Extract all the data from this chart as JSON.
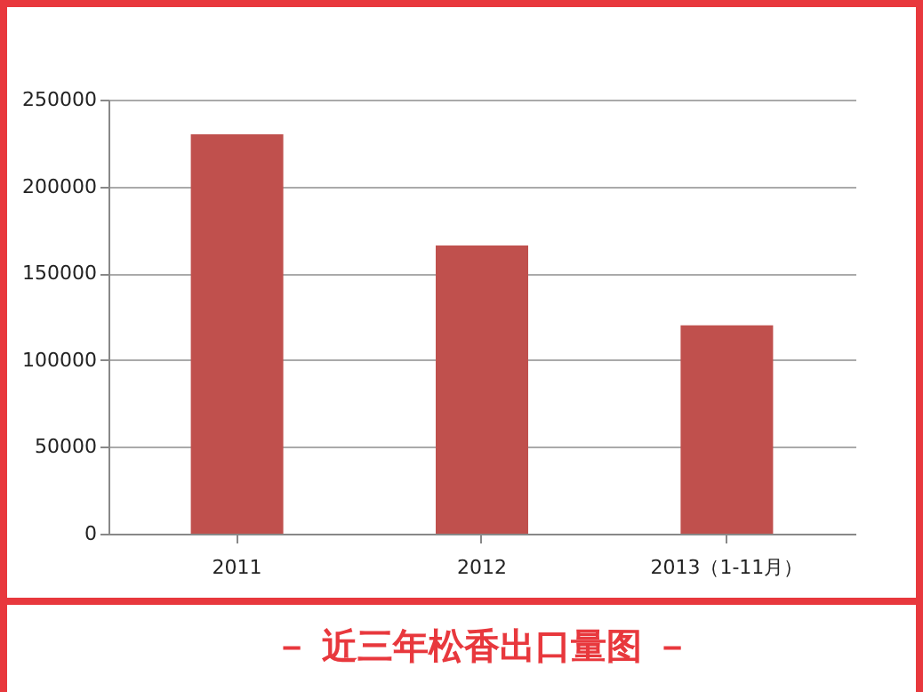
{
  "chart_data": {
    "type": "bar",
    "title": "－ 近三年松香出口量图 －",
    "categories": [
      "2011",
      "2012",
      "2013（1-11月）"
    ],
    "values": [
      230000,
      166000,
      120000
    ],
    "color": "#c0504d",
    "ylim": [
      0,
      250000
    ],
    "yticks": [
      0,
      50000,
      100000,
      150000,
      200000,
      250000
    ],
    "grid": "y"
  }
}
